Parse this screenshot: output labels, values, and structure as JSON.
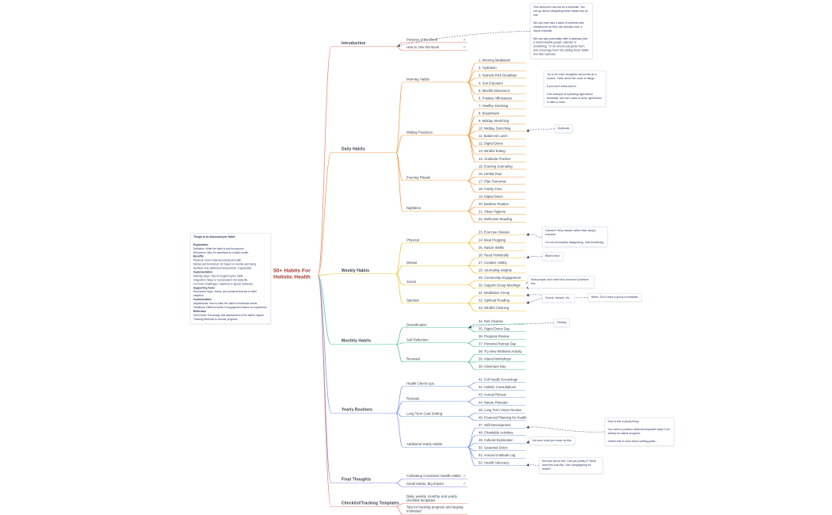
{
  "root": {
    "title_line1": "50+ Habits For",
    "title_line2": "Holistic Health"
  },
  "branches": [
    {
      "id": "introduction",
      "label": "Introduction",
      "color": "#ee8376",
      "children": [
        {
          "label": "Purpose of the Book",
          "icon": "P"
        },
        {
          "label": "How to Use this Book",
          "icon": "P"
        }
      ]
    },
    {
      "id": "daily-habits",
      "label": "Daily Habits",
      "color": "#f0a04e",
      "groups": [
        {
          "label": "Morning Habits",
          "items": [
            "1. Morning Meditation",
            "2. Hydration",
            "3. Nutrient-Rich Breakfast",
            "4. Sun Exposure",
            "5. Mindful Movement",
            "6. Positive Affirmations"
          ]
        },
        {
          "label": "Midday Practices",
          "items": [
            "7. Healthy Snacking",
            "8. Breathwork",
            "9. Midday Stretching",
            "10. Midday Stretching",
            "11. Balanced Lunch",
            "12. Digital Detox",
            "13. Mindful Eating",
            "14. Gratitude Practice"
          ]
        },
        {
          "label": "Evening Rituals",
          "items": [
            "15. Evening Journaling",
            "16. Herbal Teas",
            "17. Plan Tomorrow",
            "18. Family Time"
          ]
        },
        {
          "label": "Nighttime",
          "items": [
            "19. Digital Detox",
            "20. Bedtime Routine",
            "21. Sleep Hygiene",
            "22. Reflective Reading"
          ]
        }
      ]
    },
    {
      "id": "weekly-habits",
      "label": "Weekly Habits",
      "color": "#eec33d",
      "groups": [
        {
          "label": "Physical",
          "items": [
            "23. Exercise Classes",
            "24. Meal Prepping",
            "25. Nature Walks"
          ]
        },
        {
          "label": "Mental",
          "items": [
            "26. Read Holistically",
            "27. Creative Hobby",
            "28. Journaling Insights"
          ]
        },
        {
          "label": "Social",
          "items": [
            "29. Community Engagement",
            "30. Support Group Meetings"
          ]
        },
        {
          "label": "Spiritual",
          "items": [
            "31. Meditation Group",
            "32. Spiritual Reading",
            "33. Mindful Cleaning"
          ]
        }
      ]
    },
    {
      "id": "monthly-habits",
      "label": "Monthly Habits",
      "color": "#52c39b",
      "groups": [
        {
          "label": "Detoxification",
          "items": [
            "34. Diet Cleanse",
            "35. Digital Detox Day"
          ]
        },
        {
          "label": "Self Reflection",
          "items": [
            "36. Progress Review",
            "37. Personal Retreat Day"
          ]
        },
        {
          "label": "Renewal",
          "items": [
            "38. Try New Wellness Activity",
            "39. Attend Workshops",
            "40. Adventure Day"
          ]
        }
      ]
    },
    {
      "id": "yearly-routines",
      "label": "Yearly Routines",
      "color": "#7b9be4",
      "groups": [
        {
          "label": "Health Check-Ups",
          "items": [
            "41. Full Health Screenings",
            "42. Holistic Consultations"
          ]
        },
        {
          "label": "Retreats",
          "items": [
            "43. Annual Retreat",
            "44. Nature Retreats"
          ]
        },
        {
          "label": "Long Term Goal Setting",
          "items": [
            "45. Long Term Vision Review",
            "46. Financial Planning for Health"
          ]
        },
        {
          "label": "Additional Yearly Habits",
          "items": [
            "47. Skill Development",
            "48. Charitable Activities",
            "49. Cultural Exploration",
            "50. Seasonal Detox",
            "51. Annual Gratitude Log",
            "52. Health Advocacy"
          ]
        }
      ]
    },
    {
      "id": "final-thoughts",
      "label": "Final Thoughts",
      "color": "#8b87de",
      "children": [
        {
          "label": "Cultivating Consistent Health Habits",
          "icon": "P"
        },
        {
          "label": "Small Habits, Big Impact",
          "icon": "P"
        }
      ]
    },
    {
      "id": "checklist-templates",
      "label": "Checklist/Tracking Templates",
      "color": "#ee8376",
      "children": [
        {
          "label": "Daily, weekly, monthly, and yearly checklist templates"
        },
        {
          "label": "Tips for tracking progress and staying motivated"
        }
      ]
    }
  ],
  "notes": [
    {
      "id": "doc-note",
      "attached_to": "Introduction",
      "text": "This document can act as a checklist. You can go about integrating these habits one by one.\n\nWe can even add a table of contents with checkboxes so they can actually have a visual checklist.\n\nWe can also potentially offer a calendar (like a downloadable google calendar or something). Or we should just guide them and encourage them into adding these habits into their calendar."
    },
    {
      "id": "routine-note",
      "attached_to": null,
      "text": "Try to be more thoughtful about this as a routine. Think about the order of things.\n\nIf you don't know ask AI.\n\nOne example is hydrating right before breakfast. We don't want to drink right before or after a meal."
    },
    {
      "id": "duplicate-note",
      "attached_to": "10. Midday Stretching",
      "text": "Duplicate"
    },
    {
      "id": "classes-note",
      "attached_to": "23. Exercise Classes",
      "text": "Classes? Why classes rather than simply exercise.\n\nI'm not necessarily disagreeing. Just wondering."
    },
    {
      "id": "whats-this-note",
      "attached_to": "26. Read Holistically",
      "text": "What's this?"
    },
    {
      "id": "support-note",
      "attached_to": "30. Support Group Meetings",
      "text": "Most people don't need this and won't prioritize this."
    },
    {
      "id": "church-note",
      "attached_to": "32. Spiritual Reading",
      "text": "Church, temple, etc..."
    },
    {
      "id": "meditate-note",
      "attached_to": "31. Meditation Group",
      "text": "Weird. Don't need a group to meditate."
    },
    {
      "id": "fasting-note",
      "attached_to": "Detoxification",
      "text": "Fasting"
    },
    {
      "id": "yearly-note",
      "attached_to": "47. Skill Development",
      "text": "How is this a yearly thing.\n\nYou need to practice skills development daily if not weekly for actual progress.\n\nUnless this is more about setting goals..."
    },
    {
      "id": "cultural-note",
      "attached_to": "49. Cultural Exploration",
      "text": "Not sure what you mean by this."
    },
    {
      "id": "advocacy-note",
      "attached_to": "52. Health Advocacy",
      "text": "Not sure about this. Can you justify it? What does this look like. Like campaigning for health?"
    },
    {
      "id": "structure-note",
      "attached_to": null,
      "lines": [
        {
          "text": "Things to be discussed per Habit:",
          "bold": true
        },
        {
          "text": "",
          "bold": false
        },
        {
          "text": "Explanation",
          "bold": true
        },
        {
          "text": "Definition: What the habit is and its purpose.",
          "bold": false
        },
        {
          "text": "Relevance: Why it's beneficial for holistic health.",
          "bold": false
        },
        {
          "text": "Benefits",
          "bold": true
        },
        {
          "text": "Physical: How it improves physical health.",
          "bold": false
        },
        {
          "text": "Mental and Emotional: Its impact on mental well-being.",
          "bold": false
        },
        {
          "text": "Spiritual: Any spiritual enhancements, if applicable.",
          "bold": false
        },
        {
          "text": "Implementation",
          "bold": true
        },
        {
          "text": "Starting Steps: Tips for beginning the habit.",
          "bold": false
        },
        {
          "text": "Integration: Ways to incorporate it into daily life.",
          "bold": false
        },
        {
          "text": "Common Challenges: Solutions to typical obstacles.",
          "bold": false
        },
        {
          "text": "Supporting Tools",
          "bold": true
        },
        {
          "text": "Resources: Apps, books, and products that aid in habit adoption.",
          "bold": false
        },
        {
          "text": "Customization",
          "bold": true
        },
        {
          "text": "Adjustments: How to tailor the habit to individual needs.",
          "bold": false
        },
        {
          "text": "Variations: Different levels of engagement based on experience.",
          "bold": false
        },
        {
          "text": "Reflection",
          "bold": true
        },
        {
          "text": "Self-Check: Encourage self-assessment of the habit's impact.",
          "bold": false
        },
        {
          "text": "Tracking Methods to monitor progress.",
          "bold": false
        }
      ]
    }
  ]
}
